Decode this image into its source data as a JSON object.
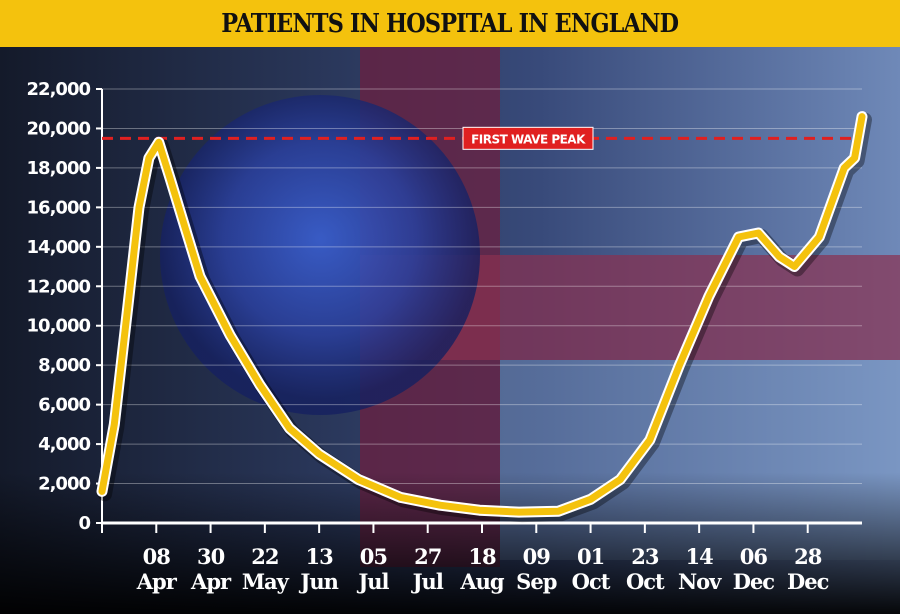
{
  "chart_data": {
    "type": "line",
    "title": "PATIENTS IN HOSPITAL IN ENGLAND",
    "xlabel": "",
    "ylabel": "",
    "ylim": [
      0,
      22000
    ],
    "yticks": [
      0,
      2000,
      4000,
      6000,
      8000,
      10000,
      12000,
      14000,
      16000,
      18000,
      20000,
      22000
    ],
    "ytick_labels": [
      "0",
      "2,000",
      "4,000",
      "6,000",
      "8,000",
      "10,000",
      "12,000",
      "14,000",
      "16,000",
      "18,000",
      "20,000",
      "22,000"
    ],
    "x_unit": "days since 17 Mar",
    "xlim": [
      0,
      308
    ],
    "xticks": [
      {
        "day": 22,
        "top": "08",
        "bottom": "Apr"
      },
      {
        "day": 44,
        "top": "30",
        "bottom": "Apr"
      },
      {
        "day": 66,
        "top": "22",
        "bottom": "May"
      },
      {
        "day": 88,
        "top": "13",
        "bottom": "Jun"
      },
      {
        "day": 110,
        "top": "05",
        "bottom": "Jul"
      },
      {
        "day": 132,
        "top": "27",
        "bottom": "Jul"
      },
      {
        "day": 154,
        "top": "18",
        "bottom": "Aug"
      },
      {
        "day": 176,
        "top": "09",
        "bottom": "Sep"
      },
      {
        "day": 198,
        "top": "01",
        "bottom": "Oct"
      },
      {
        "day": 220,
        "top": "23",
        "bottom": "Oct"
      },
      {
        "day": 242,
        "top": "14",
        "bottom": "Nov"
      },
      {
        "day": 264,
        "top": "06",
        "bottom": "Dec"
      },
      {
        "day": 286,
        "top": "28",
        "bottom": "Dec"
      }
    ],
    "grid": true,
    "series": [
      {
        "name": "Patients in hospital",
        "color": "#f4c20d",
        "x": [
          0,
          5,
          10.5,
          15,
          19,
          23,
          27.5,
          33.6,
          39.7,
          52,
          64,
          76,
          88,
          104,
          121,
          137,
          153,
          169,
          185,
          198,
          210,
          222,
          234,
          246,
          258,
          266,
          274.5,
          280.6,
          290.7,
          300.8,
          305,
          308
        ],
        "y": [
          1600,
          5000,
          11000,
          16000,
          18500,
          19300,
          17500,
          15000,
          12500,
          9500,
          7000,
          4800,
          3500,
          2200,
          1300,
          900,
          650,
          550,
          600,
          1200,
          2200,
          4200,
          8000,
          11500,
          14500,
          14700,
          13500,
          13000,
          14500,
          18000,
          18500,
          20600
        ]
      }
    ],
    "reference_line": {
      "value": 19500,
      "label": "FIRST WAVE PEAK",
      "color": "#e02020"
    }
  }
}
